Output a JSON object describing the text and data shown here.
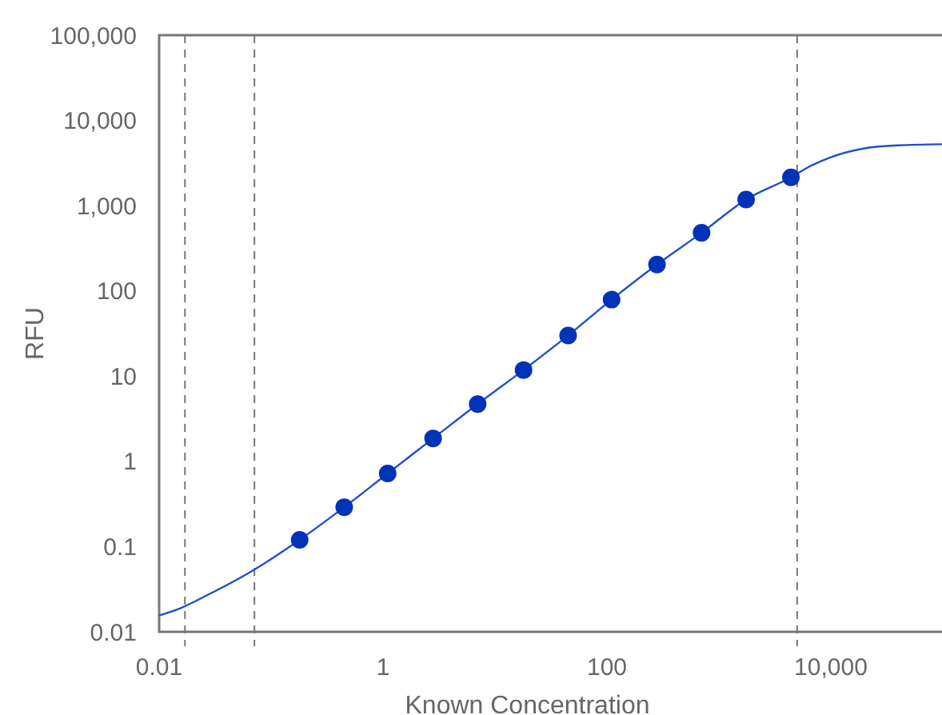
{
  "chart_data": {
    "type": "scatter",
    "xlabel": "Known Concentration",
    "ylabel": "RFU",
    "log": "xy",
    "grid": false,
    "xlim": [
      0.01,
      100000
    ],
    "xticks": [
      0.01,
      1,
      100,
      {
        "value": 10000,
        "label": "10,000"
      }
    ],
    "ylim": [
      0.01,
      100000
    ],
    "yticks": [
      0.01,
      0.1,
      1,
      10,
      100,
      {
        "value": 1000,
        "label": "1,000"
      },
      {
        "value": 10000,
        "label": "10,000"
      },
      {
        "value": 100000,
        "label": "100,000"
      }
    ],
    "series": [
      {
        "type": "line",
        "color": "#1f4fd0",
        "marker": "none",
        "line_style": "solid",
        "x": [
          0.01,
          0.0156,
          0.027,
          0.068,
          0.18,
          0.45,
          1.1,
          2.8,
          7,
          18,
          45,
          110,
          280,
          700,
          1750,
          4400,
          6200,
          10000,
          20000,
          40000,
          100000
        ],
        "values": [
          0.0155,
          0.019,
          0.027,
          0.052,
          0.12,
          0.29,
          0.72,
          1.86,
          4.7,
          11.8,
          30,
          79,
          204,
          480,
          1180,
          2150,
          2800,
          3700,
          4700,
          5100,
          5250
        ]
      },
      {
        "color": "#0033b8",
        "marker": "circle",
        "x": [
          0.18,
          0.45,
          1.1,
          2.8,
          7,
          18,
          45,
          110,
          280,
          700,
          1750,
          4400
        ],
        "values": [
          0.12,
          0.29,
          0.72,
          1.86,
          4.7,
          11.8,
          30,
          79,
          204,
          480,
          1180,
          2150
        ]
      }
    ],
    "ref_lines": [
      {
        "axis": "x",
        "value": 0.017,
        "color": "#777777",
        "line_style": "dashed"
      },
      {
        "axis": "x",
        "value": 0.071,
        "color": "#777777",
        "line_style": "dashed"
      },
      {
        "axis": "x",
        "value": 5000,
        "color": "#777777",
        "line_style": "dashed"
      }
    ]
  }
}
